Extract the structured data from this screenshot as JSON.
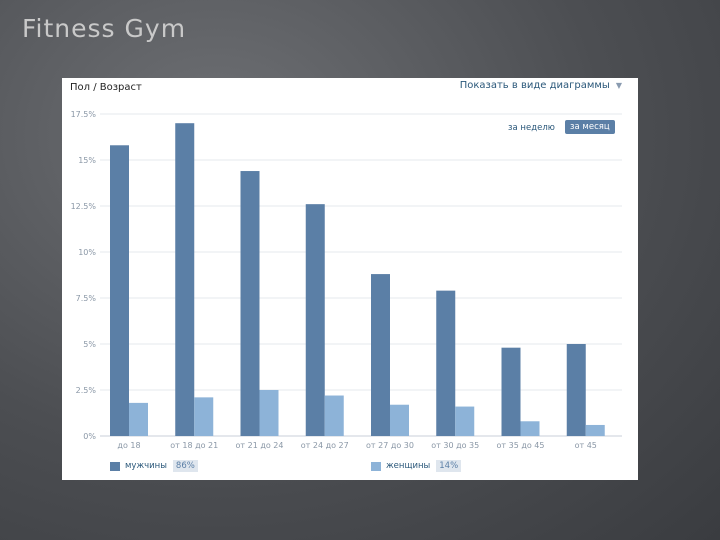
{
  "slide": {
    "title": "Fitness Gym"
  },
  "panel": {
    "title": "Пол / Возраст",
    "view_select": "Показать в виде диаграммы",
    "btn_week": "за неделю",
    "btn_month": "за месяц"
  },
  "colors": {
    "male": "#5b7fa6",
    "female": "#8db3d8",
    "grid": "#e6e9ee",
    "axis": "#c8cfd8"
  },
  "chart_data": {
    "type": "bar",
    "categories": [
      "до 18",
      "от 18 до 21",
      "от 21 до 24",
      "от 24 до 27",
      "от 27 до 30",
      "от 30 до 35",
      "от 35 до 45",
      "от 45"
    ],
    "yticks": [
      {
        "value": 0,
        "label": "0%"
      },
      {
        "value": 2.5,
        "label": "2.5%"
      },
      {
        "value": 5,
        "label": "5%"
      },
      {
        "value": 7.5,
        "label": "7.5%"
      },
      {
        "value": 10,
        "label": "10%"
      },
      {
        "value": 12.5,
        "label": "12.5%"
      },
      {
        "value": 15,
        "label": "15%"
      },
      {
        "value": 17.5,
        "label": "17.5%"
      }
    ],
    "ylim": [
      0,
      17.5
    ],
    "series": [
      {
        "name": "мужчины",
        "share": "86%",
        "values": [
          15.8,
          17.0,
          14.4,
          12.6,
          8.8,
          7.9,
          4.8,
          5.0
        ]
      },
      {
        "name": "женщины",
        "share": "14%",
        "values": [
          1.8,
          2.1,
          2.5,
          2.2,
          1.7,
          1.6,
          0.8,
          0.6
        ]
      }
    ],
    "grid": true,
    "legend": "bottom"
  }
}
